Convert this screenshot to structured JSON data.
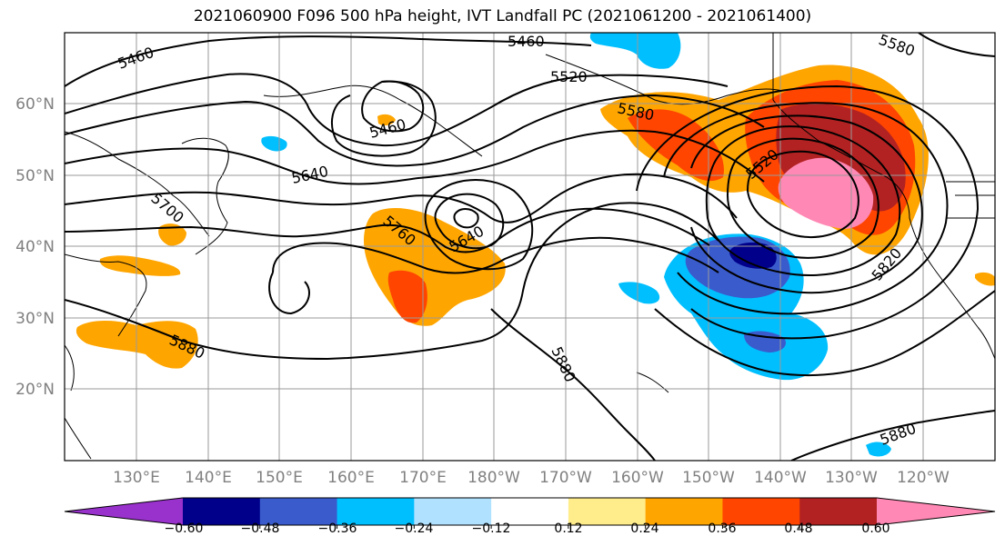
{
  "chart_data": {
    "type": "heatmap",
    "title": "2021060900 F096 500 hPa height, IVT Landfall PC (2021061200 - 2021061400)",
    "lon_ticks": [
      "130°E",
      "140°E",
      "150°E",
      "160°E",
      "170°E",
      "180°W",
      "170°W",
      "160°W",
      "150°W",
      "140°W",
      "130°W",
      "120°W"
    ],
    "lat_ticks": [
      "60°N",
      "50°N",
      "40°N",
      "30°N",
      "20°N"
    ],
    "grid": true,
    "colorbar": {
      "orientation": "horizontal",
      "position": "bottom",
      "extend": "both",
      "tick_labels": [
        "−0.60",
        "−0.48",
        "−0.36",
        "−0.24",
        "−0.12",
        "0.12",
        "0.24",
        "0.36",
        "0.48",
        "0.60"
      ],
      "bins": [
        {
          "range": "< -0.60",
          "color": "#9932CC"
        },
        {
          "range": "-0.60 to -0.48",
          "color": "#00008B"
        },
        {
          "range": "-0.48 to -0.36",
          "color": "#3A5BCC"
        },
        {
          "range": "-0.36 to -0.24",
          "color": "#00BFFF"
        },
        {
          "range": "-0.24 to -0.12",
          "color": "#B0E2FF"
        },
        {
          "range": "-0.12 to 0.12",
          "color": "#FFFFFF"
        },
        {
          "range": "0.12 to 0.24",
          "color": "#FFEC8B"
        },
        {
          "range": "0.24 to 0.36",
          "color": "#FFA500"
        },
        {
          "range": "0.36 to 0.48",
          "color": "#FF4500"
        },
        {
          "range": "0.48 to 0.60",
          "color": "#B22222"
        },
        {
          "range": "> 0.60",
          "color": "#FF88B4"
        }
      ]
    },
    "contour_labels": [
      "5460",
      "5460",
      "5520",
      "5580",
      "5460",
      "5640",
      "5700",
      "5760",
      "5640",
      "5520",
      "5880",
      "5880",
      "5820",
      "5880",
      "5580"
    ]
  }
}
